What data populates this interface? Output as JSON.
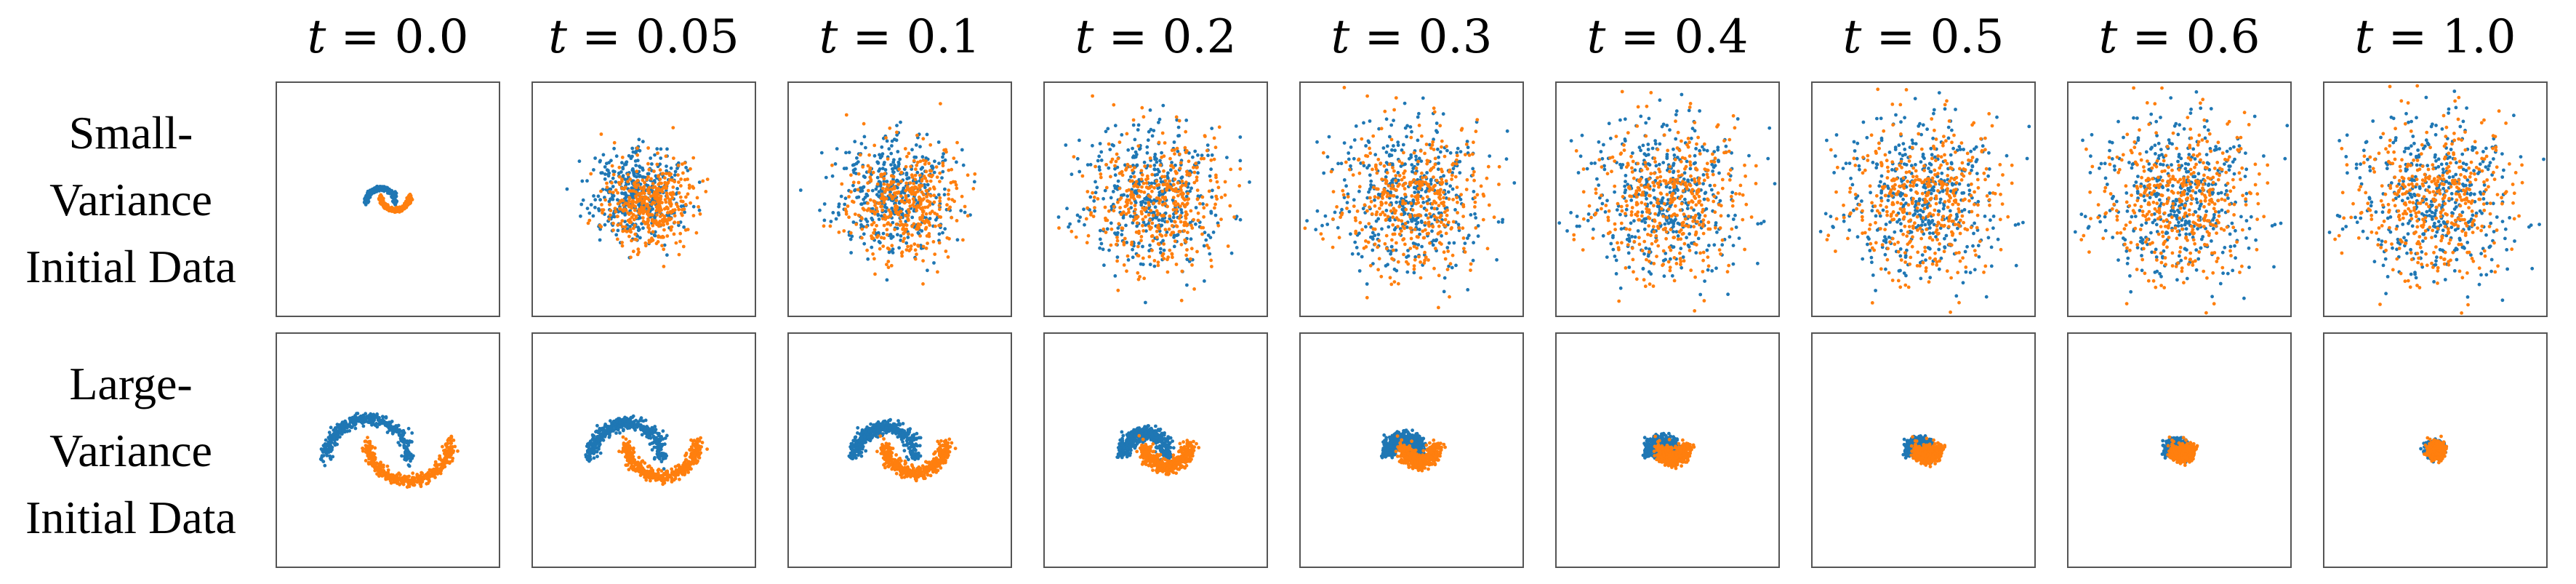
{
  "chart_data": {
    "type": "scatter",
    "grid": false,
    "axis_ticks": false,
    "time_label_var": "t",
    "time_label_eq": "=",
    "times": [
      "0.0",
      "0.05",
      "0.1",
      "0.2",
      "0.3",
      "0.4",
      "0.5",
      "0.6",
      "1.0"
    ],
    "rows": [
      {
        "label_lines": [
          "Small-",
          "Variance",
          "Initial Data"
        ],
        "initial_scale": 0.35,
        "final_spread": 1.0
      },
      {
        "label_lines": [
          "Large-",
          "Variance",
          "Initial Data"
        ],
        "initial_scale": 1.0,
        "final_spread": 0.1
      }
    ],
    "series": [
      {
        "color": "#1f77b4",
        "shape": "upper moon (arc)"
      },
      {
        "color": "#ff7f0e",
        "shape": "lower moon (arc)"
      }
    ],
    "points_per_series": 420
  }
}
